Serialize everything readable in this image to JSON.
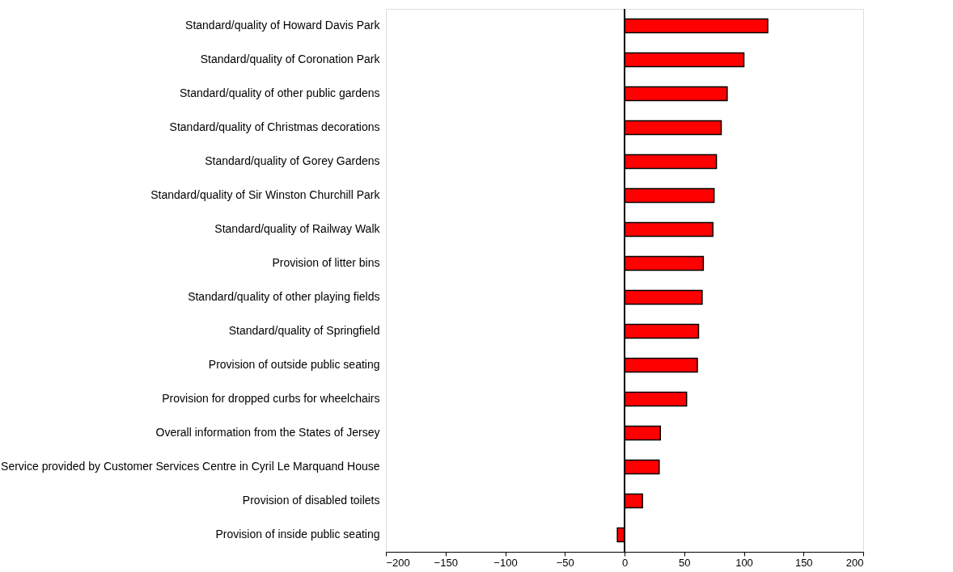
{
  "chart_data": {
    "type": "bar",
    "orientation": "horizontal",
    "categories": [
      "Standard/quality of Howard Davis Park",
      "Standard/quality of Coronation Park",
      "Standard/quality of other public gardens",
      "Standard/quality of Christmas decorations",
      "Standard/quality of Gorey Gardens",
      "Standard/quality of Sir Winston Churchill Park",
      "Standard/quality of Railway Walk",
      "Provision of litter bins",
      "Standard/quality of other playing fields",
      "Standard/quality of Springfield",
      "Provision of outside public seating",
      "Provision for dropped curbs for wheelchairs",
      "Overall information from the States of Jersey",
      "Service provided by Customer Services Centre in Cyril Le Marquand House",
      "Provision of disabled toilets",
      "Provision of inside public seating"
    ],
    "values": [
      120,
      100,
      86,
      81,
      77,
      75,
      74,
      66,
      65,
      62,
      61,
      52,
      30,
      29,
      15,
      -6
    ],
    "color": "#ff0000",
    "xlim": [
      -200,
      200
    ],
    "xticks": [
      -200,
      -150,
      -100,
      -50,
      0,
      50,
      100,
      150,
      200
    ],
    "ref_lines": [
      {
        "axis": "x",
        "value": 0
      }
    ],
    "grid": false
  }
}
